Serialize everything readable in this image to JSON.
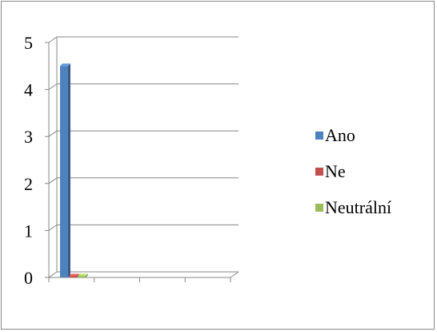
{
  "chart_data": {
    "type": "bar",
    "style": "3d-column",
    "categories": [
      ""
    ],
    "series": [
      {
        "name": "Ano",
        "color": "#4F81BD",
        "values": [
          4.5
        ]
      },
      {
        "name": "Ne",
        "color": "#C0504D",
        "values": [
          0
        ]
      },
      {
        "name": "Neutrální",
        "color": "#9BBB59",
        "values": [
          0
        ]
      }
    ],
    "title": "",
    "xlabel": "",
    "ylabel": "",
    "ylim": [
      0,
      5
    ],
    "yticks": [
      "0",
      "1",
      "2",
      "3",
      "4",
      "5"
    ],
    "grid": true,
    "legend_position": "right"
  }
}
